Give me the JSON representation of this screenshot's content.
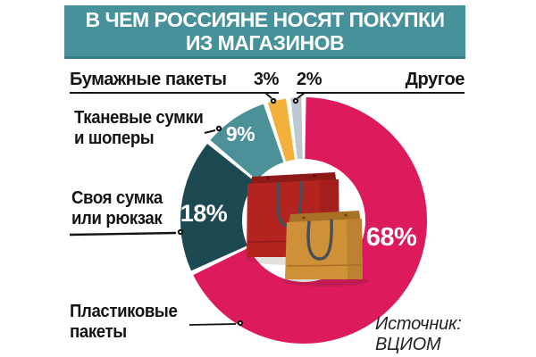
{
  "title": {
    "line1": "В ЧЕМ РОССИЯНЕ НОСЯТ ПОКУПКИ",
    "line2": "ИЗ МАГАЗИНОВ"
  },
  "source": {
    "line1": "Источник:",
    "line2": "ВЦИОМ"
  },
  "colors": {
    "banner_bg": "#47929A",
    "banner_border": "#3B7E86",
    "text": "#141414",
    "pink": "#DE1A5E",
    "dark_teal": "#1D4A52",
    "teal": "#4C9198",
    "yellow": "#F3B03A",
    "gray": "#BDC9D2"
  },
  "callouts": {
    "paper": {
      "label": "Бумажные пакеты",
      "pct": "3%"
    },
    "other": {
      "label": "Другое",
      "pct": "2%"
    },
    "fabric": {
      "line1": "Тканевые сумки",
      "line2": "и шоперы"
    },
    "own": {
      "line1": "Своя сумка",
      "line2": "или рюкзак"
    },
    "plastic": {
      "line1": "Пластиковые",
      "line2": "пакеты"
    }
  },
  "chart_data": {
    "type": "pie",
    "subtype": "donut",
    "title": "В чем россияне носят покупки из магазинов",
    "source": "Источник: ВЦИОМ",
    "legend_position": "callouts-around-chart",
    "segments": [
      {
        "label": "Пластиковые пакеты",
        "value": 68,
        "pct_label": "68%",
        "color": "#DE1A5E"
      },
      {
        "label": "Своя сумка или рюкзак",
        "value": 18,
        "pct_label": "18%",
        "color": "#1D4A52"
      },
      {
        "label": "Тканевые сумки и шоперы",
        "value": 9,
        "pct_label": "9%",
        "color": "#4C9198"
      },
      {
        "label": "Бумажные пакеты",
        "value": 3,
        "pct_label": "3%",
        "color": "#F3B03A"
      },
      {
        "label": "Другое",
        "value": 2,
        "pct_label": "2%",
        "color": "#BDC9D2"
      }
    ]
  }
}
